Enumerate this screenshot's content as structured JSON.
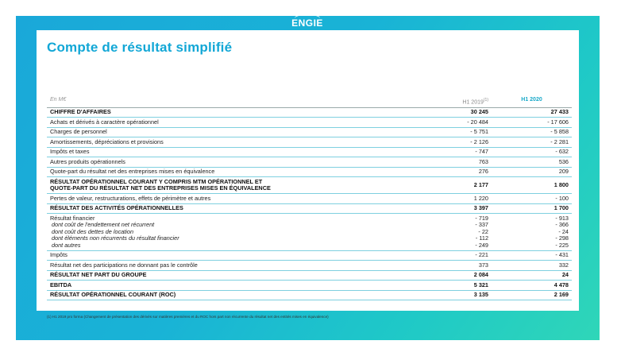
{
  "brand": {
    "logo_text": "ENGIE"
  },
  "title": "Compte de résultat simplifié",
  "table": {
    "header": {
      "unit": "En M€",
      "prev": "H1 2019",
      "prev_note": "(1)",
      "cur": "H1 2020"
    },
    "rows": [
      {
        "label": [
          "CHIFFRE D'AFFAIRES"
        ],
        "prev": [
          "30 245"
        ],
        "cur": [
          "27 433"
        ],
        "bold": true
      },
      {
        "label": [
          "Achats et dérivés à caractère opérationnel"
        ],
        "prev": [
          "- 20 484"
        ],
        "cur": [
          "- 17 606"
        ]
      },
      {
        "label": [
          "Charges de personnel"
        ],
        "prev": [
          "- 5 751"
        ],
        "cur": [
          "- 5 858"
        ]
      },
      {
        "label": [
          "Amortissements, dépréciations et provisions"
        ],
        "prev": [
          "- 2 126"
        ],
        "cur": [
          "- 2 281"
        ]
      },
      {
        "label": [
          "Impôts et taxes"
        ],
        "prev": [
          "- 747"
        ],
        "cur": [
          "- 632"
        ]
      },
      {
        "label": [
          "Autres produits opérationnels"
        ],
        "prev": [
          "763"
        ],
        "cur": [
          "536"
        ]
      },
      {
        "label": [
          "Quote-part du résultat net des entreprises mises en équivalence"
        ],
        "prev": [
          "276"
        ],
        "cur": [
          "209"
        ]
      },
      {
        "label": [
          "RÉSULTAT OPÉRATIONNEL COURANT Y COMPRIS MTM OPÉRATIONNEL ET",
          "QUOTE-PART DU RÉSULTAT NET DES ENTREPRISES MISES EN ÉQUIVALENCE"
        ],
        "prev": [
          "2 177"
        ],
        "cur": [
          "1 800"
        ],
        "bold": true
      },
      {
        "label": [
          "Pertes de valeur, restructurations, effets de périmètre et autres"
        ],
        "prev": [
          "1 220"
        ],
        "cur": [
          "- 100"
        ]
      },
      {
        "label": [
          "RÉSULTAT DES ACTIVITÉS OPÉRATIONNELLES"
        ],
        "prev": [
          "3 397"
        ],
        "cur": [
          "1 700"
        ],
        "bold": true
      },
      {
        "label": [
          "Résultat financier",
          "dont coût de l'endettement net récurrent",
          "dont coût des dettes de location",
          "dont éléments non récurrents du résultat financier",
          "dont autres"
        ],
        "prev": [
          "- 719",
          "- 337",
          "- 22",
          "- 112",
          "- 249"
        ],
        "cur": [
          "- 913",
          "- 366",
          "- 24",
          "- 298",
          "- 225"
        ],
        "sub_from": 1
      },
      {
        "label": [
          "Impôts"
        ],
        "prev": [
          "- 221"
        ],
        "cur": [
          "- 431"
        ]
      },
      {
        "label": [
          "Résultat net des participations ne donnant pas le contrôle"
        ],
        "prev": [
          "373"
        ],
        "cur": [
          "332"
        ]
      },
      {
        "label": [
          "RÉSULTAT NET PART DU GROUPE"
        ],
        "prev": [
          "2 084"
        ],
        "cur": [
          "24"
        ],
        "bold": true
      },
      {
        "label": [
          "EBITDA"
        ],
        "prev": [
          "5 321"
        ],
        "cur": [
          "4 478"
        ],
        "bold": true
      },
      {
        "label": [
          "RÉSULTAT OPÉRATIONNEL COURANT (ROC)"
        ],
        "prev": [
          "3 135"
        ],
        "cur": [
          "2 169"
        ],
        "bold": true
      }
    ]
  },
  "footnote": "(1) H1 2019 pro forma (Changement de présentation des dérivés sur matières premières et du ROC hors part non récurrente du résultat net des entités mises en équivalence)",
  "colors": {
    "accent": "#12a7d6",
    "gradient_start": "#1aa8d9",
    "gradient_end": "#2fd6b8"
  }
}
